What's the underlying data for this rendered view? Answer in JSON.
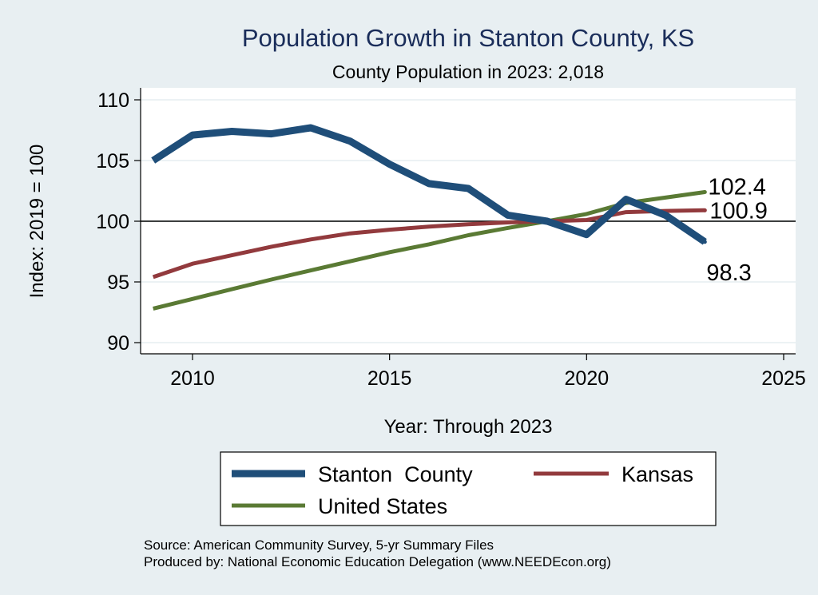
{
  "chart_data": {
    "type": "line",
    "title": "Population Growth in Stanton County, KS",
    "subtitle": "County Population in 2023: 2,018",
    "xlabel": "Year: Through 2023",
    "ylabel": "Index: 2019 = 100",
    "xlim": [
      2009,
      2025
    ],
    "ylim": [
      90,
      110
    ],
    "x_ticks": [
      2010,
      2015,
      2020,
      2025
    ],
    "y_ticks": [
      90,
      95,
      100,
      105,
      110
    ],
    "x_tick_labels": [
      "2010",
      "2015",
      "2020",
      "2025"
    ],
    "y_tick_labels": [
      "90",
      "95",
      "100",
      "105",
      "110"
    ],
    "reference_line": 100,
    "grid": true,
    "legend_position": "bottom",
    "x": [
      2009,
      2010,
      2011,
      2012,
      2013,
      2014,
      2015,
      2016,
      2017,
      2018,
      2019,
      2020,
      2021,
      2022,
      2023
    ],
    "series": [
      {
        "name": "Stanton  County",
        "color": "#1f4e79",
        "values": [
          105.0,
          107.1,
          107.4,
          107.2,
          107.7,
          106.6,
          104.7,
          103.1,
          102.7,
          100.5,
          100.0,
          98.9,
          101.8,
          100.5,
          98.3
        ],
        "end_label": "98.3"
      },
      {
        "name": "Kansas",
        "color": "#923a3d",
        "values": [
          95.4,
          96.5,
          97.2,
          97.9,
          98.5,
          99.0,
          99.3,
          99.55,
          99.75,
          99.9,
          100.0,
          100.1,
          100.75,
          100.85,
          100.9
        ],
        "end_label": "100.9"
      },
      {
        "name": "United States",
        "color": "#5a7a34",
        "values": [
          92.8,
          93.6,
          94.4,
          95.2,
          95.95,
          96.7,
          97.45,
          98.1,
          98.85,
          99.45,
          100.0,
          100.6,
          101.5,
          101.95,
          102.4
        ],
        "end_label": "102.4"
      }
    ]
  },
  "notes": {
    "source": "Source: American Community Survey, 5-yr Summary Files",
    "produced": "Produced by: National Economic Education Delegation (www.NEEDEcon.org)"
  }
}
